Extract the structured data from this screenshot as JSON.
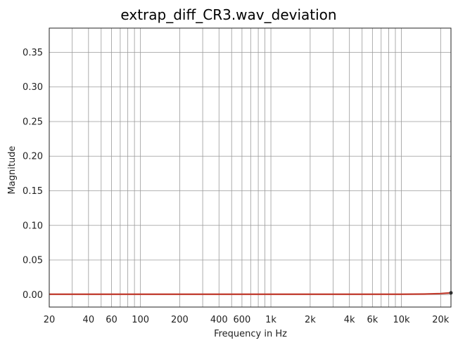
{
  "chart_data": {
    "type": "line",
    "title": "extrap_diff_CR3.wav_deviation",
    "xlabel": "Frequency in Hz",
    "ylabel": "Magnitude",
    "xscale": "log",
    "xlim": [
      20,
      24000
    ],
    "ylim": [
      -0.018,
      0.385
    ],
    "grid": true,
    "legend": "none",
    "x_ticks": [
      {
        "value": 20,
        "label": "20"
      },
      {
        "value": 40,
        "label": "40"
      },
      {
        "value": 60,
        "label": "60"
      },
      {
        "value": 100,
        "label": "100"
      },
      {
        "value": 200,
        "label": "200"
      },
      {
        "value": 400,
        "label": "400"
      },
      {
        "value": 600,
        "label": "600"
      },
      {
        "value": 1000,
        "label": "1k"
      },
      {
        "value": 2000,
        "label": "2k"
      },
      {
        "value": 4000,
        "label": "4k"
      },
      {
        "value": 6000,
        "label": "6k"
      },
      {
        "value": 10000,
        "label": "10k"
      },
      {
        "value": 20000,
        "label": "20k"
      }
    ],
    "x_grid": [
      20,
      30,
      40,
      50,
      60,
      70,
      80,
      90,
      100,
      200,
      300,
      400,
      500,
      600,
      700,
      800,
      900,
      1000,
      2000,
      3000,
      4000,
      5000,
      6000,
      7000,
      8000,
      9000,
      10000,
      20000
    ],
    "y_ticks": [
      {
        "value": 0.0,
        "label": "0.00"
      },
      {
        "value": 0.05,
        "label": "0.05"
      },
      {
        "value": 0.1,
        "label": "0.10"
      },
      {
        "value": 0.15,
        "label": "0.15"
      },
      {
        "value": 0.2,
        "label": "0.20"
      },
      {
        "value": 0.25,
        "label": "0.25"
      },
      {
        "value": 0.3,
        "label": "0.30"
      },
      {
        "value": 0.35,
        "label": "0.35"
      }
    ],
    "series": [
      {
        "color": "#c0392b",
        "x": [
          20,
          50,
          100,
          200,
          500,
          1000,
          2000,
          5000,
          10000,
          15000,
          20000,
          24000
        ],
        "y": [
          0.0005,
          0.0005,
          0.0005,
          0.0005,
          0.0005,
          0.0005,
          0.0005,
          0.0005,
          0.0005,
          0.0008,
          0.0015,
          0.0025
        ]
      }
    ]
  }
}
